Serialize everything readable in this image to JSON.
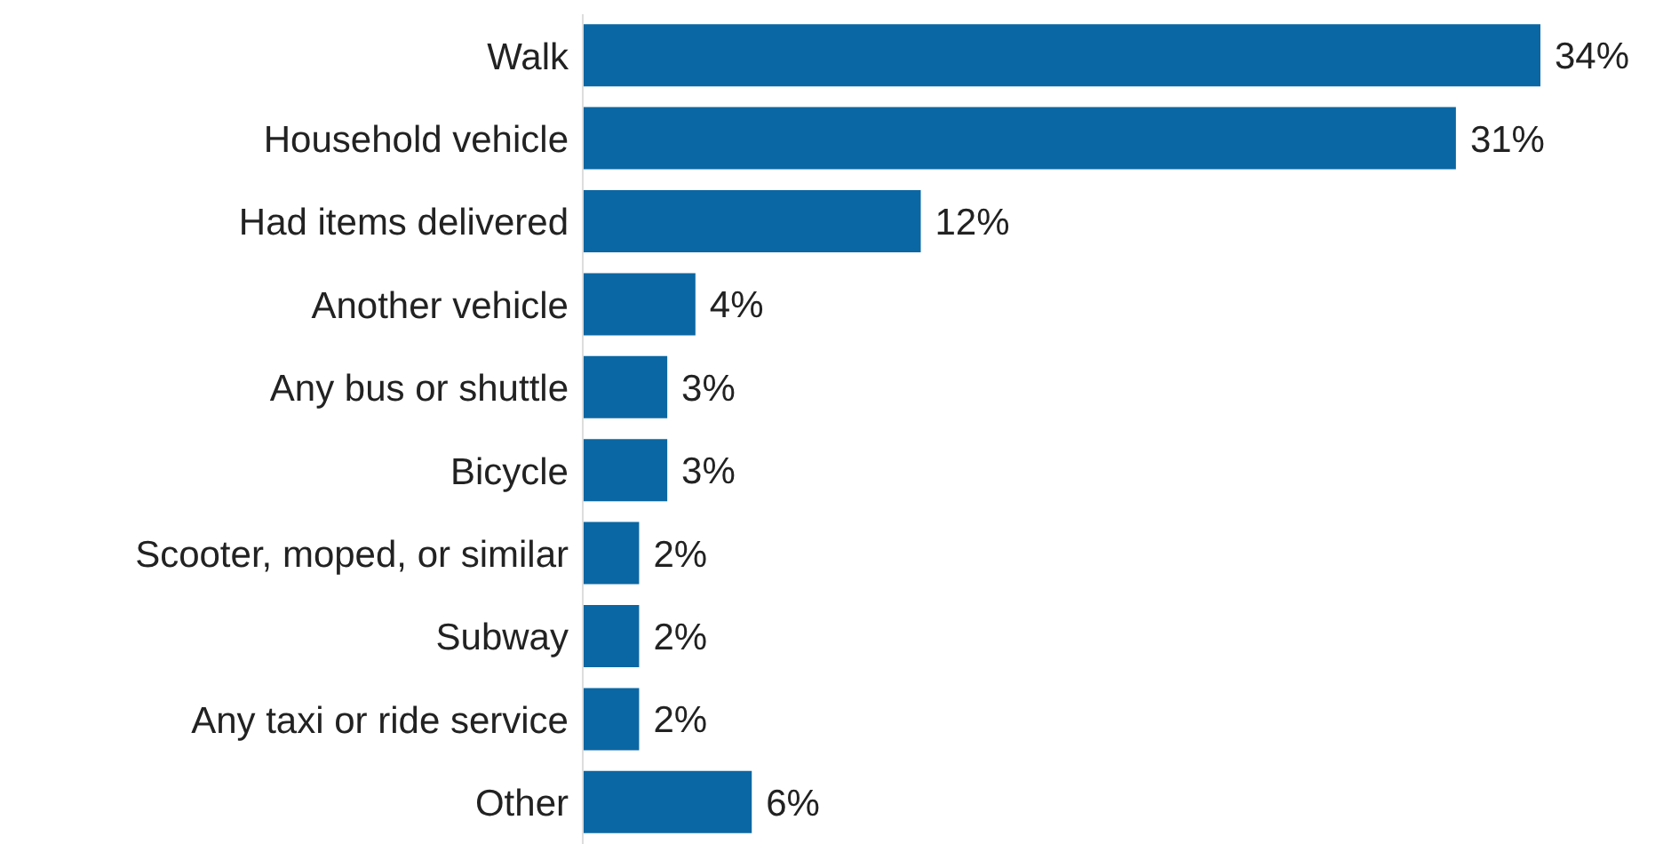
{
  "chart_data": {
    "type": "bar",
    "orientation": "horizontal",
    "categories": [
      "Walk",
      "Household vehicle",
      "Had items delivered",
      "Another vehicle",
      "Any bus or shuttle",
      "Bicycle",
      "Scooter, moped, or similar",
      "Subway",
      "Any taxi or ride service",
      "Other"
    ],
    "values": [
      34,
      31,
      12,
      4,
      3,
      3,
      2,
      2,
      2,
      6
    ],
    "value_labels": [
      "34%",
      "31%",
      "12%",
      "4%",
      "3%",
      "3%",
      "2%",
      "2%",
      "2%",
      "6%"
    ],
    "color": "#0b67a3"
  }
}
